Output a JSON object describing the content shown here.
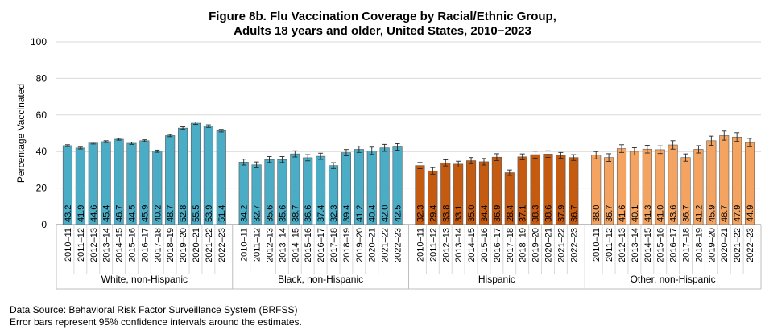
{
  "chart_data": {
    "type": "bar",
    "title": "Figure 8b. Flu Vaccination Coverage by Racial/Ethnic Group,",
    "subtitle": "Adults 18 years and older, United States, 2010−2023",
    "ylabel": "Percentage Vaccinated",
    "xlabel": "",
    "ylim": [
      0,
      100
    ],
    "yticks": [
      0,
      20,
      40,
      60,
      80,
      100
    ],
    "grid": true,
    "legend": "none",
    "seasons": [
      "2010–11",
      "2011–12",
      "2012–13",
      "2013–14",
      "2014–15",
      "2015–16",
      "2016–17",
      "2017–18",
      "2018–19",
      "2019–20",
      "2020–21",
      "2021–22",
      "2022–23"
    ],
    "groups": [
      {
        "name": "White, non-Hispanic",
        "color": "#4bacc6",
        "values": [
          43.2,
          41.9,
          44.6,
          45.4,
          46.7,
          44.5,
          45.9,
          40.2,
          48.7,
          52.8,
          55.5,
          53.9,
          51.4
        ],
        "ci_halfwidth": [
          0.5,
          0.5,
          0.5,
          0.5,
          0.5,
          0.6,
          0.5,
          0.6,
          0.6,
          0.7,
          0.7,
          0.7,
          0.7
        ]
      },
      {
        "name": "Black, non-Hispanic",
        "color": "#4bacc6",
        "values": [
          34.2,
          32.7,
          35.6,
          35.6,
          38.7,
          36.6,
          37.4,
          32.3,
          39.4,
          41.2,
          40.4,
          42.0,
          42.5
        ],
        "ci_halfwidth": [
          1.6,
          1.6,
          1.6,
          1.6,
          1.7,
          1.7,
          1.7,
          1.6,
          1.7,
          1.7,
          2.0,
          1.9,
          1.8
        ]
      },
      {
        "name": "Hispanic",
        "color": "#c55a11",
        "values": [
          32.3,
          29.4,
          33.8,
          33.1,
          35.0,
          34.4,
          36.9,
          28.4,
          37.1,
          38.3,
          38.6,
          37.9,
          36.7
        ],
        "ci_halfwidth": [
          1.7,
          1.8,
          1.7,
          1.6,
          1.7,
          1.8,
          1.9,
          1.5,
          1.6,
          1.9,
          1.8,
          1.6,
          1.6
        ]
      },
      {
        "name": "Other, non-Hispanic",
        "color": "#f4a460",
        "values": [
          38.0,
          36.7,
          41.6,
          40.1,
          41.3,
          41.0,
          43.6,
          36.7,
          41.2,
          45.9,
          48.7,
          47.9,
          44.9
        ],
        "ci_halfwidth": [
          2.0,
          2.1,
          2.1,
          2.0,
          2.1,
          2.1,
          2.3,
          2.0,
          2.0,
          2.5,
          2.5,
          2.4,
          2.3
        ]
      }
    ]
  },
  "footer": {
    "source": "Data Source: Behavioral Risk Factor Surveillance System (BRFSS)",
    "note": "Error bars represent 95% confidence intervals around the estimates."
  }
}
